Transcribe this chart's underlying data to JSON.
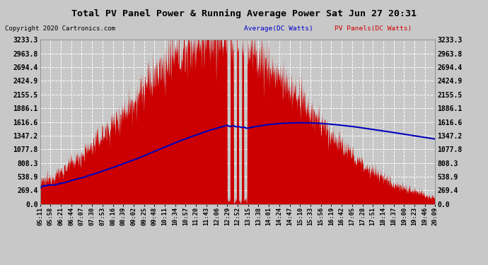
{
  "title": "Total PV Panel Power & Running Average Power Sat Jun 27 20:31",
  "copyright": "Copyright 2020 Cartronics.com",
  "legend_avg": "Average(DC Watts)",
  "legend_pv": "PV Panels(DC Watts)",
  "y_max": 3233.3,
  "y_min": 0.0,
  "yticks": [
    0.0,
    269.4,
    538.9,
    808.3,
    1077.8,
    1347.2,
    1616.6,
    1886.1,
    2155.5,
    2424.9,
    2694.4,
    2963.8,
    3233.3
  ],
  "bg_color": "#c8c8c8",
  "plot_bg_color": "#c8c8c8",
  "grid_color": "#ffffff",
  "fill_color": "#cc0000",
  "line_color": "#0000bb",
  "title_color": "#000000",
  "copyright_color": "#000000",
  "legend_avg_color": "#0000cc",
  "legend_pv_color": "#cc0000",
  "x_labels": [
    "05:11",
    "05:58",
    "06:21",
    "06:44",
    "07:07",
    "07:30",
    "07:53",
    "08:16",
    "08:39",
    "09:02",
    "09:25",
    "09:48",
    "10:11",
    "10:34",
    "10:57",
    "11:20",
    "11:43",
    "12:06",
    "12:29",
    "12:52",
    "13:15",
    "13:38",
    "14:01",
    "14:24",
    "14:47",
    "15:10",
    "15:33",
    "15:56",
    "16:19",
    "16:42",
    "17:05",
    "17:28",
    "17:51",
    "18:14",
    "18:37",
    "19:00",
    "19:23",
    "19:46",
    "20:09"
  ]
}
